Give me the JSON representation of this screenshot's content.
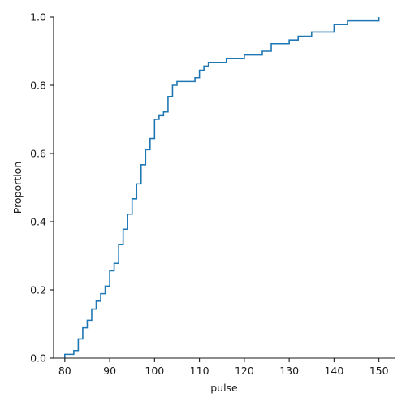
{
  "chart_data": {
    "type": "line",
    "subtype": "ecdf-step",
    "title": "",
    "xlabel": "pulse",
    "ylabel": "Proportion",
    "xlim": [
      77.5,
      153.5
    ],
    "ylim": [
      0,
      1.0
    ],
    "xticks": [
      80,
      90,
      100,
      110,
      120,
      130,
      140,
      150
    ],
    "xtick_labels": [
      "80",
      "90",
      "100",
      "110",
      "120",
      "130",
      "140",
      "150"
    ],
    "yticks": [
      0.0,
      0.2,
      0.4,
      0.6,
      0.8,
      1.0
    ],
    "ytick_labels": [
      "0.0",
      "0.2",
      "0.4",
      "0.6",
      "0.8",
      "1.0"
    ],
    "grid": false,
    "legend": "none",
    "color": "#1f77b4",
    "series": [
      {
        "points": [
          [
            80,
            0.011
          ],
          [
            82,
            0.022
          ],
          [
            83,
            0.056
          ],
          [
            84,
            0.089
          ],
          [
            85,
            0.111
          ],
          [
            86,
            0.144
          ],
          [
            87,
            0.167
          ],
          [
            88,
            0.189
          ],
          [
            89,
            0.211
          ],
          [
            90,
            0.256
          ],
          [
            91,
            0.278
          ],
          [
            92,
            0.333
          ],
          [
            93,
            0.378
          ],
          [
            94,
            0.422
          ],
          [
            95,
            0.467
          ],
          [
            96,
            0.511
          ],
          [
            97,
            0.567
          ],
          [
            98,
            0.611
          ],
          [
            99,
            0.644
          ],
          [
            100,
            0.7
          ],
          [
            101,
            0.711
          ],
          [
            102,
            0.722
          ],
          [
            103,
            0.767
          ],
          [
            104,
            0.8
          ],
          [
            105,
            0.811
          ],
          [
            109,
            0.822
          ],
          [
            110,
            0.844
          ],
          [
            111,
            0.856
          ],
          [
            112,
            0.867
          ],
          [
            116,
            0.878
          ],
          [
            120,
            0.889
          ],
          [
            124,
            0.9
          ],
          [
            126,
            0.922
          ],
          [
            130,
            0.933
          ],
          [
            132,
            0.944
          ],
          [
            135,
            0.956
          ],
          [
            140,
            0.978
          ],
          [
            143,
            0.989
          ],
          [
            150,
            1.0
          ]
        ]
      }
    ]
  }
}
